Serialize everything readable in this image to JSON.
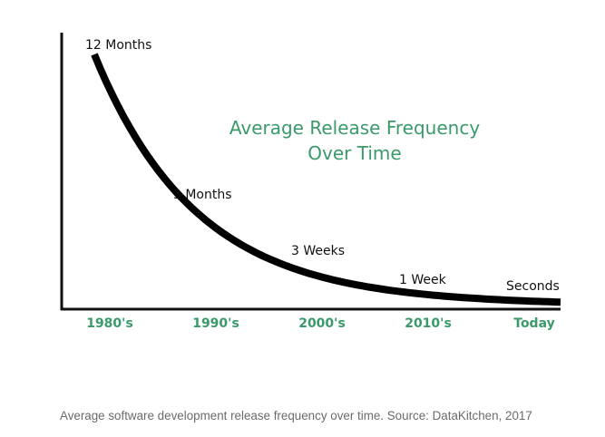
{
  "chart_data": {
    "type": "line",
    "title": [
      "Average Release Frequency",
      "Over Time"
    ],
    "xlabel": "",
    "ylabel": "",
    "categories": [
      "1980's",
      "1990's",
      "2000's",
      "2010's",
      "Today"
    ],
    "series": [
      {
        "name": "Average Release Frequency",
        "values_label": [
          "12 Months",
          "3 Months",
          "3 Weeks",
          "1 Week",
          "Seconds"
        ],
        "values_relative": [
          1.0,
          0.37,
          0.17,
          0.05,
          0.0
        ]
      }
    ],
    "annotations": [
      {
        "text": "12 Months",
        "category": "1980's"
      },
      {
        "text": "3 Months",
        "category": "1990's"
      },
      {
        "text": "3 Weeks",
        "category": "2000's"
      },
      {
        "text": "1 Week",
        "category": "2010's"
      },
      {
        "text": "Seconds",
        "category": "Today"
      }
    ],
    "grid": false,
    "legend": "none",
    "colors": {
      "title": "#3a9a6a",
      "ticks": "#3a9a6a",
      "line": "#000000",
      "annotation": "#111111"
    }
  },
  "caption": "Average software development release frequency over time. Source: DataKitchen, 2017"
}
